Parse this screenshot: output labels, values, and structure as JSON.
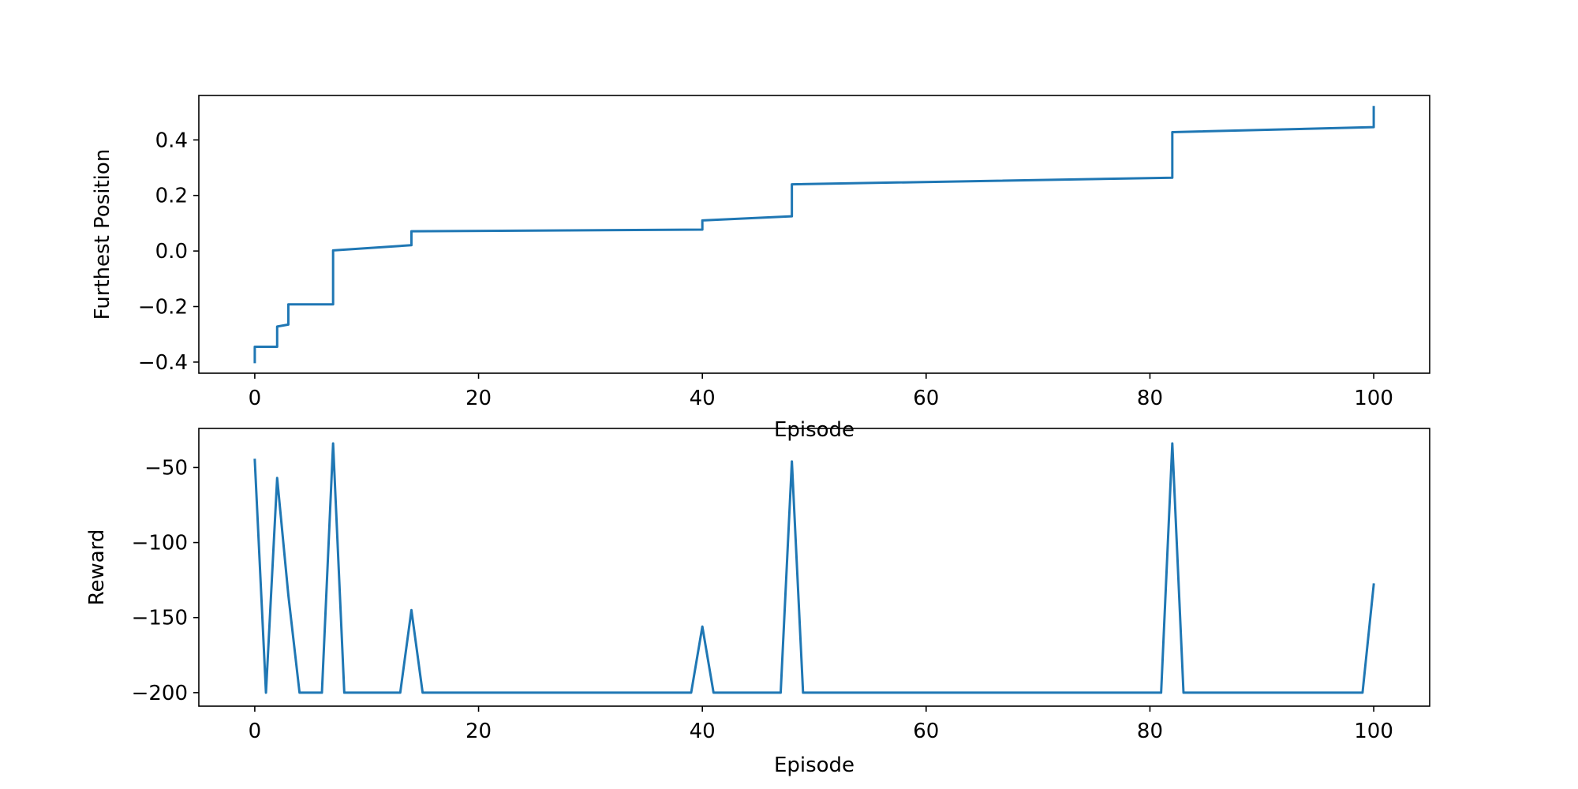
{
  "chart_data": [
    {
      "type": "line",
      "title": "",
      "xlabel": "Episode",
      "ylabel": "Furthest Position",
      "xlim": [
        -5,
        105
      ],
      "ylim": [
        -0.44,
        0.56
      ],
      "xticks": [
        0,
        20,
        40,
        60,
        80,
        100
      ],
      "xtick_labels": [
        "0",
        "20",
        "40",
        "60",
        "80",
        "100"
      ],
      "yticks": [
        -0.4,
        -0.2,
        0.0,
        0.2,
        0.4
      ],
      "ytick_labels": [
        "−0.4",
        "−0.2",
        "0.0",
        "0.2",
        "0.4"
      ],
      "grid": false,
      "series": [
        {
          "color": "#1f77b4",
          "x": [
            0,
            0,
            2,
            2,
            3,
            3,
            7,
            7,
            14,
            14,
            40,
            40,
            48,
            48,
            82,
            82,
            100,
            100
          ],
          "y": [
            -0.4,
            -0.345,
            -0.345,
            -0.272,
            -0.265,
            -0.192,
            -0.192,
            0.002,
            0.021,
            0.071,
            0.077,
            0.11,
            0.125,
            0.24,
            0.264,
            0.428,
            0.446,
            0.518
          ]
        }
      ]
    },
    {
      "type": "line",
      "title": "",
      "xlabel": "Episode",
      "ylabel": "Reward",
      "xlim": [
        -5,
        105
      ],
      "ylim": [
        -209,
        -24
      ],
      "xticks": [
        0,
        20,
        40,
        60,
        80,
        100
      ],
      "xtick_labels": [
        "0",
        "20",
        "40",
        "60",
        "80",
        "100"
      ],
      "yticks": [
        -50,
        -100,
        -150,
        -200
      ],
      "ytick_labels": [
        "−50",
        "−100",
        "−150",
        "−200"
      ],
      "grid": false,
      "series": [
        {
          "color": "#1f77b4",
          "x": [
            0,
            1,
            2,
            3,
            4,
            5,
            6,
            7,
            8,
            9,
            10,
            11,
            12,
            13,
            14,
            15,
            39,
            40,
            41,
            47,
            48,
            49,
            81,
            82,
            83,
            99,
            100
          ],
          "y": [
            -45,
            -200,
            -57,
            -135,
            -200,
            -200,
            -200,
            -34,
            -200,
            -200,
            -200,
            -200,
            -200,
            -200,
            -145,
            -200,
            -200,
            -156,
            -200,
            -200,
            -46,
            -200,
            -200,
            -34,
            -200,
            -200,
            -128
          ]
        }
      ]
    }
  ]
}
